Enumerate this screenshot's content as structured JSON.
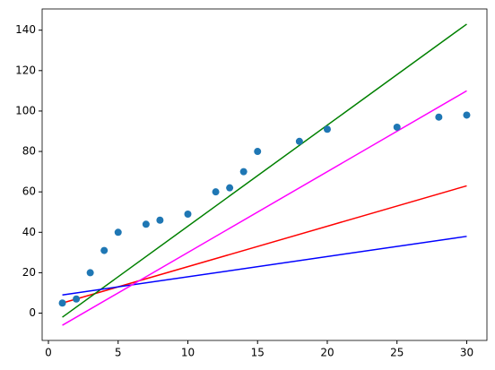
{
  "chart_data": {
    "type": "scatter",
    "xlim": [
      -0.45,
      31.45
    ],
    "ylim": [
      -13.5,
      150.5
    ],
    "xticks": [
      0,
      5,
      10,
      15,
      20,
      25,
      30
    ],
    "yticks": [
      0,
      20,
      40,
      60,
      80,
      100,
      120,
      140
    ],
    "series": [
      {
        "type": "scatter",
        "color": "#1f77b4",
        "x": [
          1,
          2,
          3,
          4,
          5,
          7,
          8,
          10,
          12,
          13,
          14,
          15,
          18,
          20,
          25,
          28,
          30
        ],
        "values": [
          5,
          7,
          20,
          31,
          40,
          44,
          46,
          49,
          60,
          62,
          70,
          80,
          85,
          91,
          92,
          97,
          98
        ]
      },
      {
        "type": "line",
        "color": "#ff0000",
        "x": [
          1,
          30
        ],
        "values": [
          5,
          63
        ]
      },
      {
        "type": "line",
        "color": "#008000",
        "x": [
          1,
          30
        ],
        "values": [
          -2,
          143
        ]
      },
      {
        "type": "line",
        "color": "#0000ff",
        "x": [
          1,
          30
        ],
        "values": [
          9,
          38
        ]
      },
      {
        "type": "line",
        "color": "#ff00ff",
        "x": [
          1,
          30
        ],
        "values": [
          -6,
          110
        ]
      }
    ]
  }
}
